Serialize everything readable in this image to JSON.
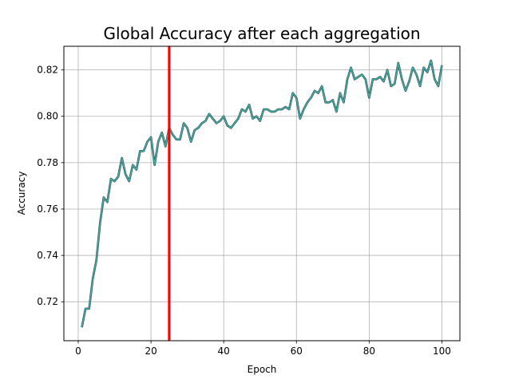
{
  "chart_data": {
    "type": "line",
    "title": "Global Accuracy after each aggregation",
    "xlabel": "Epoch",
    "ylabel": "Accuracy",
    "xlim": [
      -3.95,
      104.95
    ],
    "ylim": [
      0.7032,
      0.8302
    ],
    "xticks": [
      0,
      20,
      40,
      60,
      80,
      100
    ],
    "yticks": [
      0.72,
      0.74,
      0.76,
      0.78,
      0.8,
      0.82
    ],
    "xtick_labels": [
      "0",
      "20",
      "40",
      "60",
      "80",
      "100"
    ],
    "ytick_labels": [
      "0.72",
      "0.74",
      "0.76",
      "0.78",
      "0.80",
      "0.82"
    ],
    "grid": true,
    "vline": {
      "x": 25,
      "color": "#ff0000"
    },
    "series": [
      {
        "color": "#3aafa9",
        "x": [
          1,
          2,
          3,
          4,
          5,
          6,
          7,
          8,
          9,
          10,
          11,
          12,
          13,
          14,
          15,
          16,
          17,
          18,
          19,
          20,
          21,
          22,
          23,
          24,
          25,
          26,
          27,
          28,
          29,
          30,
          31,
          32,
          33,
          34,
          35,
          36,
          37,
          38,
          39,
          40,
          41,
          42,
          43,
          44,
          45,
          46,
          47,
          48,
          49,
          50,
          51,
          52,
          53,
          54,
          55,
          56,
          57,
          58,
          59,
          60,
          61,
          62,
          63,
          64,
          65,
          66,
          67,
          68,
          69,
          70,
          71,
          72,
          73,
          74,
          75,
          76,
          77,
          78,
          79,
          80,
          81,
          82,
          83,
          84,
          85,
          86,
          87,
          88,
          89,
          90,
          91,
          92,
          93,
          94,
          95,
          96,
          97,
          98,
          99,
          100
        ],
        "y": [
          0.709,
          0.717,
          0.717,
          0.73,
          0.738,
          0.754,
          0.765,
          0.763,
          0.773,
          0.772,
          0.774,
          0.782,
          0.775,
          0.772,
          0.779,
          0.777,
          0.785,
          0.785,
          0.789,
          0.791,
          0.779,
          0.789,
          0.793,
          0.787,
          0.795,
          0.792,
          0.79,
          0.79,
          0.797,
          0.795,
          0.789,
          0.794,
          0.795,
          0.797,
          0.798,
          0.801,
          0.799,
          0.797,
          0.798,
          0.8,
          0.796,
          0.795,
          0.797,
          0.799,
          0.803,
          0.802,
          0.805,
          0.799,
          0.8,
          0.798,
          0.803,
          0.803,
          0.802,
          0.802,
          0.803,
          0.803,
          0.804,
          0.803,
          0.81,
          0.808,
          0.799,
          0.803,
          0.806,
          0.808,
          0.811,
          0.81,
          0.813,
          0.806,
          0.806,
          0.807,
          0.802,
          0.81,
          0.806,
          0.816,
          0.821,
          0.816,
          0.817,
          0.818,
          0.816,
          0.808,
          0.816,
          0.816,
          0.817,
          0.815,
          0.82,
          0.813,
          0.814,
          0.823,
          0.816,
          0.811,
          0.815,
          0.821,
          0.818,
          0.813,
          0.821,
          0.819,
          0.824,
          0.816,
          0.813,
          0.822
        ]
      }
    ]
  }
}
